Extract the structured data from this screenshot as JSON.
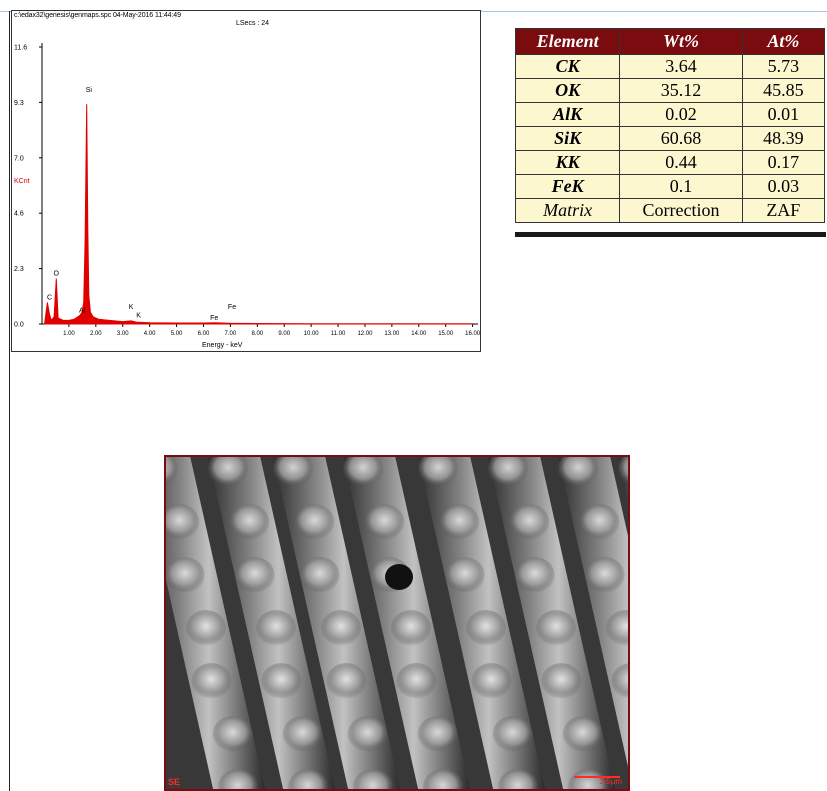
{
  "eds": {
    "header": "c:\\edax32\\genesis\\genmaps.spc  04-May-2016 11:44:49",
    "lsecs": "LSecs : 24",
    "colors": {
      "spectrum": "#e00000",
      "axis": "#000000",
      "ylabel": "#e00000"
    }
  },
  "chart_data": {
    "type": "line",
    "title": "",
    "xlabel": "Energy - keV",
    "ylabel": "KCnt",
    "xlim": [
      0,
      16.2
    ],
    "ylim": [
      0,
      11.6
    ],
    "y_ticks": [
      "0.0",
      "2.3",
      "4.6",
      "7.0",
      "9.3",
      "11.6"
    ],
    "x_ticks": [
      "1.00",
      "2.00",
      "3.00",
      "4.00",
      "5.00",
      "6.00",
      "7.00",
      "8.00",
      "9.00",
      "10.00",
      "11.00",
      "12.00",
      "13.00",
      "14.00",
      "15.00",
      "16.00"
    ],
    "series": [
      {
        "x": [
          0.1,
          0.2,
          0.28,
          0.35,
          0.45,
          0.53,
          0.6,
          0.8,
          1.0,
          1.2,
          1.4,
          1.49,
          1.55,
          1.6,
          1.66,
          1.7,
          1.74,
          1.8,
          1.9,
          2.1,
          2.5,
          3.0,
          3.31,
          3.5,
          4.0,
          5.0,
          6.0,
          6.4,
          7.0,
          8.0,
          10.0,
          12.0,
          14.0,
          16.0
        ],
        "y": [
          0.05,
          0.9,
          0.4,
          0.15,
          0.3,
          1.9,
          0.25,
          0.15,
          0.15,
          0.2,
          0.35,
          0.5,
          0.9,
          3.5,
          9.2,
          4.0,
          1.2,
          0.5,
          0.3,
          0.2,
          0.15,
          0.1,
          0.13,
          0.08,
          0.05,
          0.04,
          0.04,
          0.05,
          0.03,
          0.02,
          0.01,
          0.01,
          0.01,
          0.01
        ]
      }
    ],
    "peak_labels": [
      {
        "label": "C",
        "x": 0.28,
        "y": 0.9
      },
      {
        "label": "O",
        "x": 0.53,
        "y": 1.9
      },
      {
        "label": "Al",
        "x": 1.49,
        "y": 0.35
      },
      {
        "label": "Si",
        "x": 1.74,
        "y": 9.6
      },
      {
        "label": "K",
        "x": 3.31,
        "y": 0.5
      },
      {
        "label": "K",
        "x": 3.59,
        "y": 0.15
      },
      {
        "label": "Fe",
        "x": 7.06,
        "y": 0.5
      },
      {
        "label": "Fe",
        "x": 6.4,
        "y": 0.05
      }
    ]
  },
  "table": {
    "headers": [
      "Element",
      "Wt%",
      "At%"
    ],
    "rows": [
      [
        "CK",
        "3.64",
        "5.73"
      ],
      [
        "OK",
        "35.12",
        "45.85"
      ],
      [
        "AlK",
        "0.02",
        "0.01"
      ],
      [
        "SiK",
        "60.68",
        "48.39"
      ],
      [
        "KK",
        "0.44",
        "0.17"
      ],
      [
        "FeK",
        "0.1",
        "0.03"
      ],
      [
        "Matrix",
        "Correction",
        "ZAF"
      ]
    ],
    "colors": {
      "header_bg": "#7a0b0f",
      "header_fg": "#ffffff",
      "cell_bg": "#fdf7d0"
    }
  },
  "sem": {
    "detector_tag": "SE",
    "scale_text": "2.5μm",
    "colors": {
      "overlay": "#ff2a2a",
      "border": "#7a0b0f"
    }
  }
}
